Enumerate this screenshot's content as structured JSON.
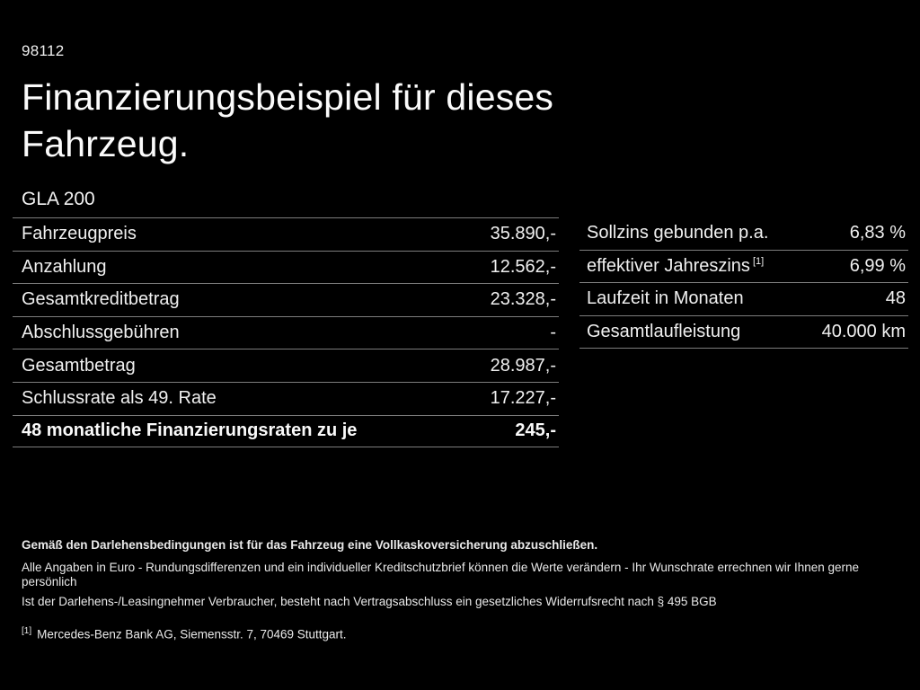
{
  "doc_number": "98112",
  "title": "Finanzierungsbeispiel für dieses Fahrzeug.",
  "model": "GLA 200",
  "finance_table": {
    "rows": [
      {
        "label": "Fahrzeugpreis",
        "value": "35.890,-"
      },
      {
        "label": "Anzahlung",
        "value": "12.562,-"
      },
      {
        "label": "Gesamtkreditbetrag",
        "value": "23.328,-"
      },
      {
        "label": "Abschlussgebühren",
        "value": "-"
      },
      {
        "label": "Gesamtbetrag",
        "value": "28.987,-"
      },
      {
        "label": "Schlussrate als 49. Rate",
        "value": "17.227,-"
      },
      {
        "label": "48 monatliche Finanzierungsraten zu je",
        "value": "245,-"
      }
    ]
  },
  "conditions_table": {
    "rows": [
      {
        "label": "Sollzins gebunden p.a.",
        "value": "6,83 %"
      },
      {
        "label": "effektiver Jahreszins",
        "marker": "[1]",
        "value": "6,99 %"
      },
      {
        "label": "Laufzeit in Monaten",
        "value": "48"
      },
      {
        "label": "Gesamtlaufleistung",
        "value": "40.000 km"
      }
    ]
  },
  "footnotes": {
    "insurance": "Gemäß den Darlehensbedingungen ist für das Fahrzeug eine Vollkaskoversicherung abzuschließen.",
    "disclaimer1": "Alle Angaben in Euro - Rundungsdifferenzen und ein individueller Kreditschutzbrief können die Werte verändern - Ihr Wunschrate errechnen wir Ihnen gerne persönlich",
    "disclaimer2": "Ist der Darlehens-/Leasingnehmer Verbraucher, besteht nach Vertragsabschluss ein gesetzliches Widerrufsrecht nach § 495 BGB",
    "marker": "[1]",
    "bank": "Mercedes-Benz Bank AG, Siemensstr. 7, 70469 Stuttgart."
  },
  "colors": {
    "background": "#000000",
    "text": "#f2f2f2",
    "divider": "#7d7d7d"
  }
}
